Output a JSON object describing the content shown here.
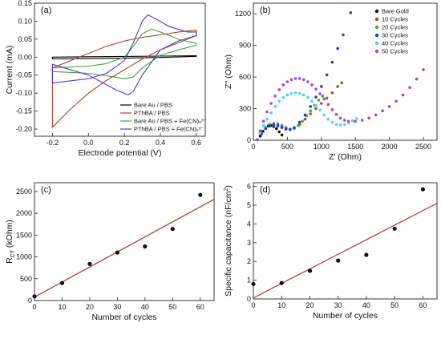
{
  "chart_data": [
    {
      "panel": "(a)",
      "type": "line",
      "xlabel": "Electrode potential (V)",
      "ylabel": "Current (mA)",
      "xlim": [
        -0.3,
        0.65
      ],
      "ylim": [
        -0.22,
        0.15
      ],
      "xticks": [
        "-0.2",
        "0.0",
        "0.2",
        "0.4",
        "0.6"
      ],
      "xtick_values": [
        -0.2,
        0.0,
        0.2,
        0.4,
        0.6
      ],
      "yticks": [
        "-0.20",
        "-0.15",
        "-0.10",
        "-0.05",
        "0.00",
        "0.05",
        "0.10",
        "0.15"
      ],
      "ytick_values": [
        -0.2,
        -0.15,
        -0.1,
        -0.05,
        0.0,
        0.05,
        0.1,
        0.15
      ],
      "legend_placement": "bottom-right",
      "series": [
        {
          "name": "Bare Au / PBS",
          "color": "#000000",
          "x": [
            -0.2,
            0.0,
            0.2,
            0.4,
            0.6,
            0.6,
            0.4,
            0.2,
            0.0,
            -0.2
          ],
          "y": [
            -0.005,
            -0.004,
            -0.003,
            -0.001,
            0.002,
            0.004,
            0.003,
            0.002,
            0.001,
            0.0
          ]
        },
        {
          "name": "PThBA / PBS",
          "color": "#b5432b",
          "x": [
            -0.2,
            -0.1,
            0.0,
            0.1,
            0.2,
            0.3,
            0.4,
            0.5,
            0.6,
            0.6,
            0.5,
            0.4,
            0.3,
            0.2,
            0.1,
            0.0,
            -0.1,
            -0.2
          ],
          "y": [
            -0.195,
            -0.145,
            -0.1,
            -0.065,
            -0.035,
            -0.005,
            0.02,
            0.04,
            0.06,
            0.075,
            0.07,
            0.062,
            0.055,
            0.045,
            0.03,
            0.01,
            -0.01,
            -0.03
          ]
        },
        {
          "name": "Bare Au / PBS + Fe(CN)₆³⁻",
          "color": "#3aa935",
          "x": [
            -0.2,
            0.0,
            0.1,
            0.2,
            0.25,
            0.3,
            0.35,
            0.4,
            0.5,
            0.6,
            0.6,
            0.5,
            0.4,
            0.3,
            0.25,
            0.2,
            0.1,
            0.0,
            -0.2
          ],
          "y": [
            -0.03,
            -0.025,
            -0.018,
            0.0,
            0.03,
            0.065,
            0.078,
            0.07,
            0.05,
            0.038,
            0.033,
            0.02,
            0.005,
            -0.03,
            -0.055,
            -0.06,
            -0.052,
            -0.045,
            -0.04
          ]
        },
        {
          "name": "PThBA / PBS + Fe(CN)₆³⁻",
          "color": "#5239c9",
          "x": [
            -0.2,
            0.0,
            0.1,
            0.2,
            0.25,
            0.3,
            0.33,
            0.38,
            0.45,
            0.55,
            0.6,
            0.6,
            0.5,
            0.4,
            0.3,
            0.25,
            0.22,
            0.15,
            0.0,
            -0.2
          ],
          "y": [
            -0.072,
            -0.06,
            -0.045,
            -0.01,
            0.04,
            0.1,
            0.118,
            0.105,
            0.085,
            0.07,
            0.07,
            0.06,
            0.045,
            0.02,
            -0.05,
            -0.095,
            -0.105,
            -0.09,
            -0.05,
            -0.02
          ]
        }
      ]
    },
    {
      "panel": "(b)",
      "type": "scatter",
      "xlabel": "Z' (Ohm)",
      "ylabel": "Z'' (Ohm)",
      "xlim": [
        0,
        2700
      ],
      "ylim": [
        0,
        1300
      ],
      "xticks": [
        "0",
        "500",
        "1000",
        "1500",
        "2000",
        "2500"
      ],
      "xtick_values": [
        0,
        500,
        1000,
        1500,
        2000,
        2500
      ],
      "yticks": [
        "0",
        "300",
        "600",
        "900",
        "1200"
      ],
      "ytick_values": [
        0,
        300,
        600,
        900,
        1200
      ],
      "legend_placement": "top-right",
      "series": [
        {
          "name": "Bare Gold",
          "color": "#111111",
          "x": [
            60,
            100,
            140,
            180,
            220,
            260,
            300,
            340,
            380,
            420
          ],
          "y": [
            5,
            40,
            85,
            115,
            135,
            140,
            130,
            110,
            80,
            50
          ]
        },
        {
          "name": "10 Cycles",
          "color": "#a0522d",
          "x": [
            60,
            120,
            180,
            240,
            300,
            360,
            420,
            480,
            540,
            600,
            680,
            760,
            840,
            920,
            1000,
            1080,
            1160,
            1240,
            1300
          ],
          "y": [
            5,
            60,
            110,
            135,
            140,
            135,
            120,
            105,
            100,
            115,
            150,
            200,
            250,
            300,
            350,
            400,
            450,
            510,
            545
          ]
        },
        {
          "name": "20 Cycles",
          "color": "#3aa935",
          "x": [
            60,
            120,
            180,
            240,
            300,
            360,
            420,
            480,
            540,
            600,
            660,
            720,
            780,
            840,
            900,
            960,
            1020
          ],
          "y": [
            5,
            70,
            120,
            150,
            160,
            155,
            140,
            120,
            105,
            110,
            140,
            180,
            230,
            280,
            330,
            380,
            420
          ]
        },
        {
          "name": "30 Cycles",
          "color": "#1f3fd6",
          "x": [
            60,
            120,
            180,
            240,
            300,
            360,
            420,
            480,
            540,
            600,
            680,
            760,
            840,
            920,
            1000,
            1080,
            1160,
            1240,
            1320,
            1430
          ],
          "y": [
            5,
            65,
            110,
            135,
            145,
            140,
            125,
            110,
            105,
            120,
            170,
            240,
            320,
            410,
            510,
            620,
            740,
            870,
            1000,
            1210
          ]
        },
        {
          "name": "40 Cycles",
          "color": "#4fd2f0",
          "x": [
            60,
            100,
            150,
            200,
            260,
            320,
            380,
            440,
            500,
            560,
            620,
            680,
            740,
            800,
            860,
            920,
            980,
            1040,
            1100,
            1160,
            1220,
            1280,
            1340,
            1400,
            1460,
            1520
          ],
          "y": [
            5,
            70,
            140,
            200,
            260,
            320,
            370,
            405,
            430,
            445,
            450,
            445,
            430,
            405,
            370,
            330,
            285,
            240,
            200,
            170,
            150,
            145,
            150,
            165,
            185,
            205
          ]
        },
        {
          "name": "50 Cycles",
          "color": "#a546e0",
          "x": [
            60,
            100,
            150,
            200,
            260,
            320,
            380,
            440,
            500,
            560,
            620,
            680,
            740,
            800,
            860,
            920,
            980,
            1040,
            1100,
            1160,
            1220,
            1280,
            1340,
            1400,
            1500,
            1600,
            1700,
            1800,
            1900,
            2000,
            2100,
            2200,
            2300,
            2400,
            2500
          ],
          "y": [
            5,
            90,
            180,
            270,
            350,
            420,
            480,
            525,
            555,
            575,
            585,
            585,
            575,
            555,
            525,
            485,
            440,
            390,
            340,
            290,
            245,
            210,
            190,
            180,
            180,
            190,
            210,
            240,
            280,
            320,
            370,
            430,
            500,
            580,
            670
          ]
        }
      ]
    },
    {
      "panel": "(c)",
      "type": "scatter",
      "xlabel": "Number of cycles",
      "ylabel": "R_CT (kOhm)",
      "ylabel_main": "R",
      "ylabel_sub": "CT",
      "ylabel_rest": " (kOhm)",
      "xlim": [
        0,
        65
      ],
      "ylim": [
        0,
        2700
      ],
      "xticks": [
        "0",
        "10",
        "20",
        "30",
        "40",
        "50",
        "60"
      ],
      "xtick_values": [
        0,
        10,
        20,
        30,
        40,
        50,
        60
      ],
      "yticks": [
        "0",
        "500",
        "1000",
        "1500",
        "2000",
        "2500"
      ],
      "ytick_values": [
        0,
        500,
        1000,
        1500,
        2000,
        2500
      ],
      "points": {
        "x": [
          0,
          10,
          20,
          30,
          40,
          50,
          60
        ],
        "y": [
          95,
          400,
          840,
          1100,
          1240,
          1640,
          2420
        ]
      },
      "fit": {
        "x": [
          0,
          65
        ],
        "y": [
          80,
          2320
        ],
        "color": "#b5432b"
      }
    },
    {
      "panel": "(d)",
      "type": "scatter",
      "xlabel": "Number of cycles",
      "ylabel": "Specific capacitance (nF/cm²)",
      "ylabel_main": "Specific capacitance (nF/cm",
      "ylabel_sup": "2",
      "ylabel_rest": ")",
      "xlim": [
        0,
        65
      ],
      "ylim": [
        0,
        6.2
      ],
      "xticks": [
        "0",
        "10",
        "20",
        "30",
        "40",
        "50",
        "60"
      ],
      "xtick_values": [
        0,
        10,
        20,
        30,
        40,
        50,
        60
      ],
      "yticks": [
        "0",
        "1",
        "2",
        "3",
        "4",
        "5",
        "6"
      ],
      "ytick_values": [
        0,
        1,
        2,
        3,
        4,
        5,
        6
      ],
      "points": {
        "x": [
          0,
          10,
          20,
          30,
          40,
          50,
          60
        ],
        "y": [
          0.8,
          0.85,
          1.5,
          2.05,
          2.35,
          3.75,
          5.85
        ]
      },
      "fit": {
        "x": [
          0,
          65
        ],
        "y": [
          0.05,
          5.1
        ],
        "color": "#b5432b"
      }
    }
  ]
}
